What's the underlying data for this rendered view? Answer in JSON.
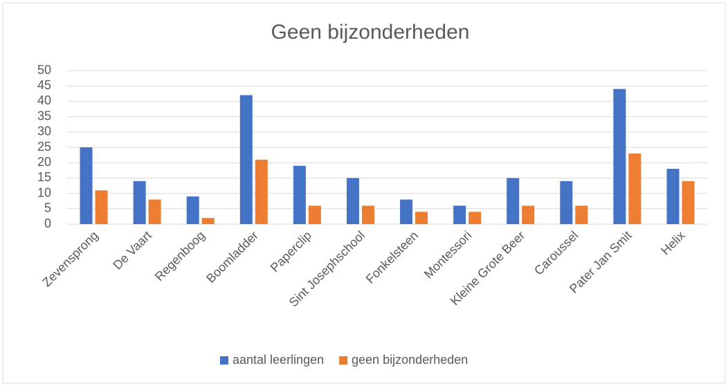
{
  "chart_data": {
    "type": "bar",
    "title": "Geen bijzonderheden",
    "categories": [
      "Zevensprong",
      "De Vaart",
      "Regenboog",
      "Boomladder",
      "Paperclip",
      "Sint Josephschool",
      "Fonkelsteen",
      "Montessori",
      "Kleine Grote Beer",
      "Caroussel",
      "Pater Jan Smit",
      "Helix"
    ],
    "series": [
      {
        "name": "aantal leerlingen",
        "color": "#4472c4",
        "values": [
          25,
          14,
          9,
          42,
          19,
          15,
          8,
          6,
          15,
          14,
          44,
          18
        ]
      },
      {
        "name": "geen bijzonderheden",
        "color": "#ed7d31",
        "values": [
          11,
          8,
          2,
          21,
          6,
          6,
          4,
          4,
          6,
          6,
          23,
          14
        ]
      }
    ],
    "ylim": [
      0,
      50
    ],
    "yticks": [
      0,
      5,
      10,
      15,
      20,
      25,
      30,
      35,
      40,
      45,
      50
    ],
    "grid": true,
    "legend": "bottom"
  }
}
